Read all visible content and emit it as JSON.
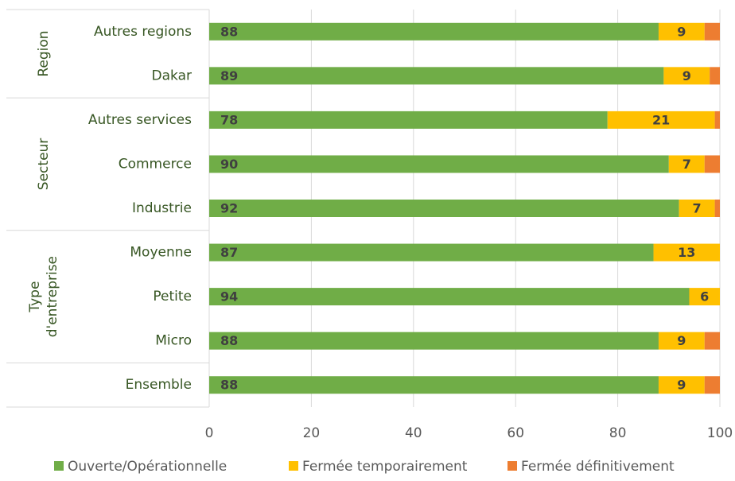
{
  "chart_data": {
    "type": "stacked_barh",
    "categories": [
      "Autres regions",
      "Dakar",
      "Autres services",
      "Commerce",
      "Industrie",
      "Moyenne",
      "Petite",
      "Micro",
      "Ensemble"
    ],
    "groups": [
      {
        "label": "Region",
        "size": 2
      },
      {
        "label": "Secteur",
        "size": 3
      },
      {
        "label": "Type d'entreprise",
        "size": 3
      },
      {
        "label": null,
        "size": 1
      }
    ],
    "series": [
      {
        "name": "Ouverte/Opérationnelle",
        "color": "#70ad47",
        "values": [
          88,
          89,
          78,
          90,
          92,
          87,
          94,
          88,
          88
        ],
        "labels": true
      },
      {
        "name": "Fermée temporairement",
        "color": "#ffc000",
        "values": [
          9,
          9,
          21,
          7,
          7,
          13,
          6,
          9,
          9
        ],
        "labels": true
      },
      {
        "name": "Fermée définitivement",
        "color": "#ed7d31",
        "values": [
          3,
          2,
          1,
          3,
          1,
          0,
          0,
          3,
          3
        ],
        "labels": false
      }
    ],
    "xlim": [
      0,
      100
    ],
    "xticks": [
      0,
      20,
      40,
      60,
      80,
      100
    ],
    "grid": true,
    "legend": "bottom"
  }
}
